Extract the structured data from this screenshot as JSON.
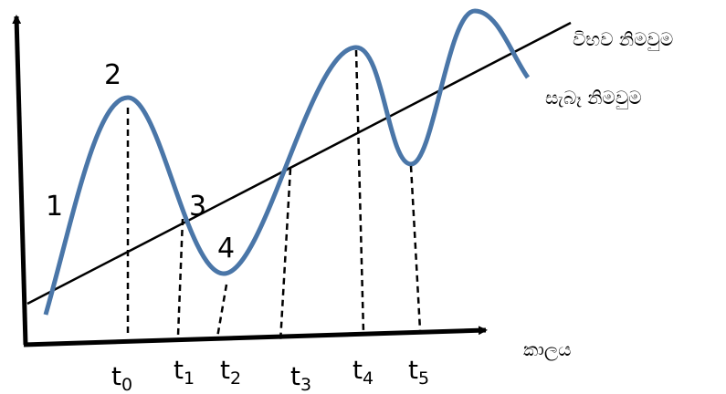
{
  "diagram": {
    "curves": {
      "potential_output": "විභව නිමවුම",
      "actual_output": "සැබෑ නිමවුම"
    },
    "x_axis_label": "කාලය",
    "points": [
      "1",
      "2",
      "3",
      "4"
    ],
    "times": [
      {
        "base": "t",
        "sub": "0"
      },
      {
        "base": "t",
        "sub": "1"
      },
      {
        "base": "t",
        "sub": "2"
      },
      {
        "base": "t",
        "sub": "3"
      },
      {
        "base": "t",
        "sub": "4"
      },
      {
        "base": "t",
        "sub": "5"
      }
    ]
  }
}
